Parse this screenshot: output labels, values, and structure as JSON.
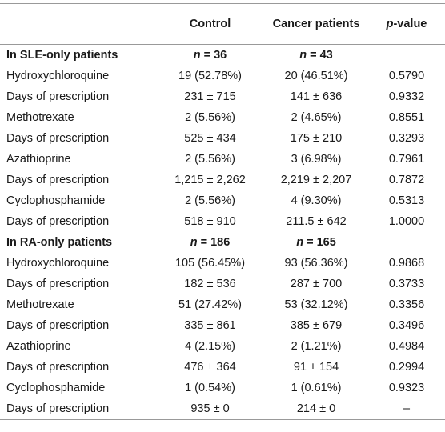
{
  "table": {
    "header": [
      "",
      "Control",
      "Cancer patients",
      "p-value"
    ],
    "rows": [
      [
        "In SLE-only patients",
        "n = 36",
        "n = 43",
        ""
      ],
      [
        "Hydroxychloroquine",
        "19 (52.78%)",
        "20 (46.51%)",
        "0.5790"
      ],
      [
        "Days of prescription",
        "231 ± 715",
        "141 ± 636",
        "0.9332"
      ],
      [
        "Methotrexate",
        "2 (5.56%)",
        "2 (4.65%)",
        "0.8551"
      ],
      [
        "Days of prescription",
        "525 ± 434",
        "175 ± 210",
        "0.3293"
      ],
      [
        "Azathioprine",
        "2 (5.56%)",
        "3 (6.98%)",
        "0.7961"
      ],
      [
        "Days of prescription",
        "1,215 ± 2,262",
        "2,219 ± 2,207",
        "0.7872"
      ],
      [
        "Cyclophosphamide",
        "2 (5.56%)",
        "4 (9.30%)",
        "0.5313"
      ],
      [
        "Days of prescription",
        "518 ± 910",
        "211.5 ± 642",
        "1.0000"
      ],
      [
        "In RA-only patients",
        "n = 186",
        "n = 165",
        ""
      ],
      [
        "Hydroxychloroquine",
        "105 (56.45%)",
        "93 (56.36%)",
        "0.9868"
      ],
      [
        "Days of prescription",
        "182 ± 536",
        "287 ± 700",
        "0.3733"
      ],
      [
        "Methotrexate",
        "51 (27.42%)",
        "53 (32.12%)",
        "0.3356"
      ],
      [
        "Days of prescription",
        "335 ± 861",
        "385 ± 679",
        "0.3496"
      ],
      [
        "Azathioprine",
        "4 (2.15%)",
        "2 (1.21%)",
        "0.4984"
      ],
      [
        "Days of prescription",
        "476 ± 364",
        "91 ± 154",
        "0.2994"
      ],
      [
        "Cyclophosphamide",
        "1 (0.54%)",
        "1 (0.61%)",
        "0.9323"
      ],
      [
        "Days of prescription",
        "935 ± 0",
        "214 ± 0",
        "–"
      ]
    ],
    "section_rows": [
      0,
      9
    ]
  }
}
